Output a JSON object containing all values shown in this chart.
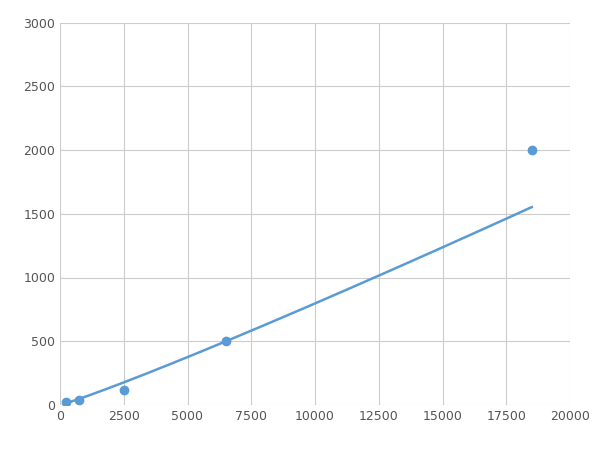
{
  "x": [
    250,
    750,
    2500,
    6500,
    18500
  ],
  "y": [
    20,
    40,
    120,
    500,
    2000
  ],
  "line_color": "#5B9BD5",
  "marker_color": "#5B9BD5",
  "marker_size": 6,
  "line_width": 1.8,
  "xlim": [
    0,
    20000
  ],
  "ylim": [
    0,
    3000
  ],
  "xticks": [
    0,
    2500,
    5000,
    7500,
    10000,
    12500,
    15000,
    17500,
    20000
  ],
  "yticks": [
    0,
    500,
    1000,
    1500,
    2000,
    2500,
    3000
  ],
  "grid_color": "#CCCCCC",
  "background_color": "#FFFFFF",
  "figsize": [
    6.0,
    4.5
  ],
  "dpi": 100
}
